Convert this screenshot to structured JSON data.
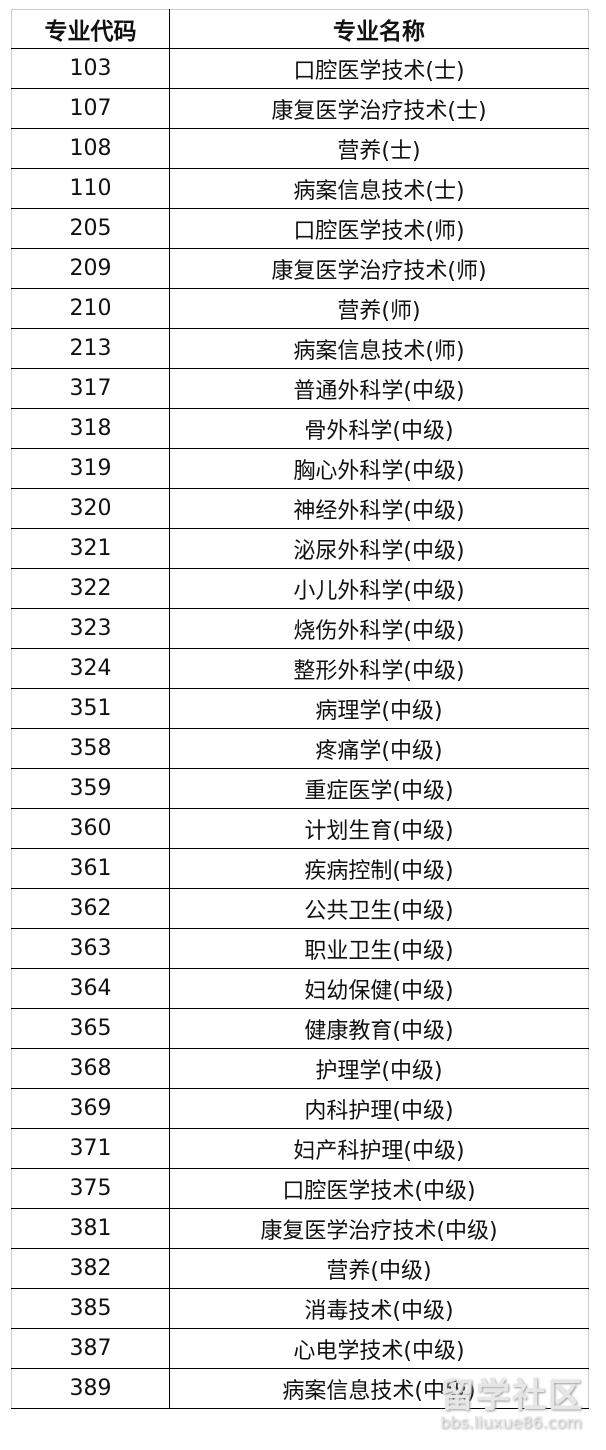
{
  "table": {
    "headers": [
      "专业代码",
      "专业名称"
    ],
    "rows": [
      [
        "103",
        "口腔医学技术(士)"
      ],
      [
        "107",
        "康复医学治疗技术(士)"
      ],
      [
        "108",
        "营养(士)"
      ],
      [
        "110",
        "病案信息技术(士)"
      ],
      [
        "205",
        "口腔医学技术(师)"
      ],
      [
        "209",
        "康复医学治疗技术(师)"
      ],
      [
        "210",
        "营养(师)"
      ],
      [
        "213",
        "病案信息技术(师)"
      ],
      [
        "317",
        "普通外科学(中级)"
      ],
      [
        "318",
        "骨外科学(中级)"
      ],
      [
        "319",
        "胸心外科学(中级)"
      ],
      [
        "320",
        "神经外科学(中级)"
      ],
      [
        "321",
        "泌尿外科学(中级)"
      ],
      [
        "322",
        "小儿外科学(中级)"
      ],
      [
        "323",
        "烧伤外科学(中级)"
      ],
      [
        "324",
        "整形外科学(中级)"
      ],
      [
        "351",
        "病理学(中级)"
      ],
      [
        "358",
        "疼痛学(中级)"
      ],
      [
        "359",
        "重症医学(中级)"
      ],
      [
        "360",
        "计划生育(中级)"
      ],
      [
        "361",
        "疾病控制(中级)"
      ],
      [
        "362",
        "公共卫生(中级)"
      ],
      [
        "363",
        "职业卫生(中级)"
      ],
      [
        "364",
        "妇幼保健(中级)"
      ],
      [
        "365",
        "健康教育(中级)"
      ],
      [
        "368",
        "护理学(中级)"
      ],
      [
        "369",
        "内科护理(中级)"
      ],
      [
        "371",
        "妇产科护理(中级)"
      ],
      [
        "375",
        "口腔医学技术(中级)"
      ],
      [
        "381",
        "康复医学治疗技术(中级)"
      ],
      [
        "382",
        "营养(中级)"
      ],
      [
        "385",
        "消毒技术(中级)"
      ],
      [
        "387",
        "心电学技术(中级)"
      ],
      [
        "389",
        "病案信息技术(中级)"
      ]
    ]
  },
  "watermark": {
    "title": "留学社区",
    "url": "bbs.liuxue86.com"
  }
}
